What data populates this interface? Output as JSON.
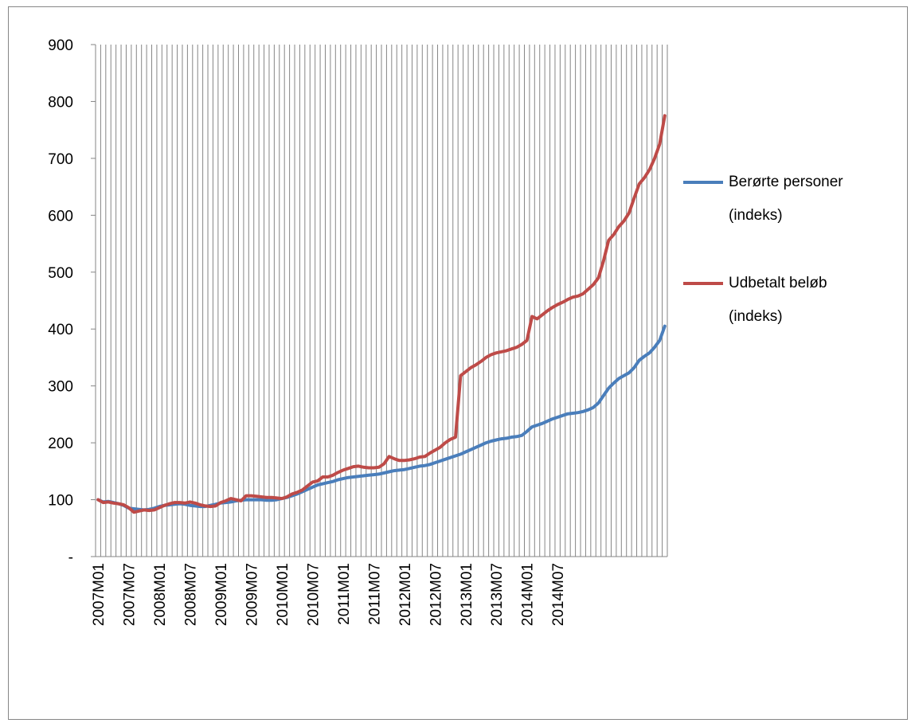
{
  "chart_data": {
    "type": "line",
    "title": "",
    "xlabel": "",
    "ylabel": "",
    "ylim": [
      0,
      900
    ],
    "y_ticks": [
      {
        "value": 0,
        "label": "-"
      },
      {
        "value": 100,
        "label": "100"
      },
      {
        "value": 200,
        "label": "200"
      },
      {
        "value": 300,
        "label": "300"
      },
      {
        "value": 400,
        "label": "400"
      },
      {
        "value": 500,
        "label": "500"
      },
      {
        "value": 600,
        "label": "600"
      },
      {
        "value": 700,
        "label": "700"
      },
      {
        "value": 800,
        "label": "800"
      },
      {
        "value": 900,
        "label": "900"
      }
    ],
    "x_tick_labels": [
      "2007M01",
      "2007M07",
      "2008M01",
      "2008M07",
      "2009M01",
      "2009M07",
      "2010M01",
      "2010M07",
      "2011M01",
      "2011M07",
      "2012M01",
      "2012M07",
      "2013M01",
      "2013M07",
      "2014M01",
      "2014M07"
    ],
    "grid": "vertical gridlines at every month",
    "legend_position": "right",
    "series": [
      {
        "name": "Berørte personer (indeks)",
        "color": "#4a7ebb",
        "values": [
          100,
          96,
          97,
          95,
          93,
          90,
          85,
          84,
          83,
          82,
          83,
          85,
          88,
          90,
          91,
          92,
          93,
          92,
          90,
          89,
          88,
          88,
          90,
          92,
          94,
          95,
          96,
          98,
          99,
          100,
          100,
          100,
          100,
          99,
          99,
          100,
          102,
          104,
          107,
          110,
          114,
          118,
          122,
          126,
          128,
          130,
          132,
          135,
          137,
          139,
          140,
          141,
          142,
          143,
          144,
          145,
          147,
          149,
          151,
          152,
          153,
          155,
          157,
          159,
          160,
          162,
          165,
          168,
          171,
          174,
          177,
          180,
          184,
          188,
          192,
          196,
          200,
          203,
          205,
          207,
          208,
          210,
          211,
          213,
          220,
          228,
          231,
          234,
          238,
          242,
          245,
          248,
          251,
          252,
          253,
          255,
          258,
          262,
          270,
          283,
          296,
          305,
          313,
          318,
          323,
          332,
          345,
          352,
          358,
          368,
          380,
          405
        ]
      },
      {
        "name": "Udbetalt beløb (indeks)",
        "color": "#be4b48",
        "values": [
          100,
          95,
          96,
          94,
          93,
          91,
          86,
          78,
          80,
          82,
          81,
          82,
          86,
          90,
          93,
          95,
          95,
          94,
          96,
          94,
          91,
          89,
          88,
          89,
          95,
          98,
          102,
          100,
          98,
          107,
          107,
          106,
          105,
          104,
          104,
          103,
          102,
          105,
          110,
          113,
          117,
          124,
          131,
          133,
          140,
          140,
          143,
          148,
          152,
          155,
          158,
          159,
          157,
          156,
          156,
          157,
          163,
          176,
          172,
          169,
          169,
          170,
          172,
          175,
          176,
          182,
          187,
          192,
          200,
          206,
          210,
          318,
          325,
          332,
          337,
          343,
          350,
          355,
          358,
          360,
          362,
          365,
          368,
          373,
          380,
          422,
          418,
          425,
          432,
          438,
          443,
          447,
          452,
          456,
          458,
          462,
          470,
          478,
          490,
          520,
          556,
          566,
          580,
          590,
          604,
          630,
          655,
          666,
          680,
          700,
          725,
          775
        ]
      }
    ]
  }
}
